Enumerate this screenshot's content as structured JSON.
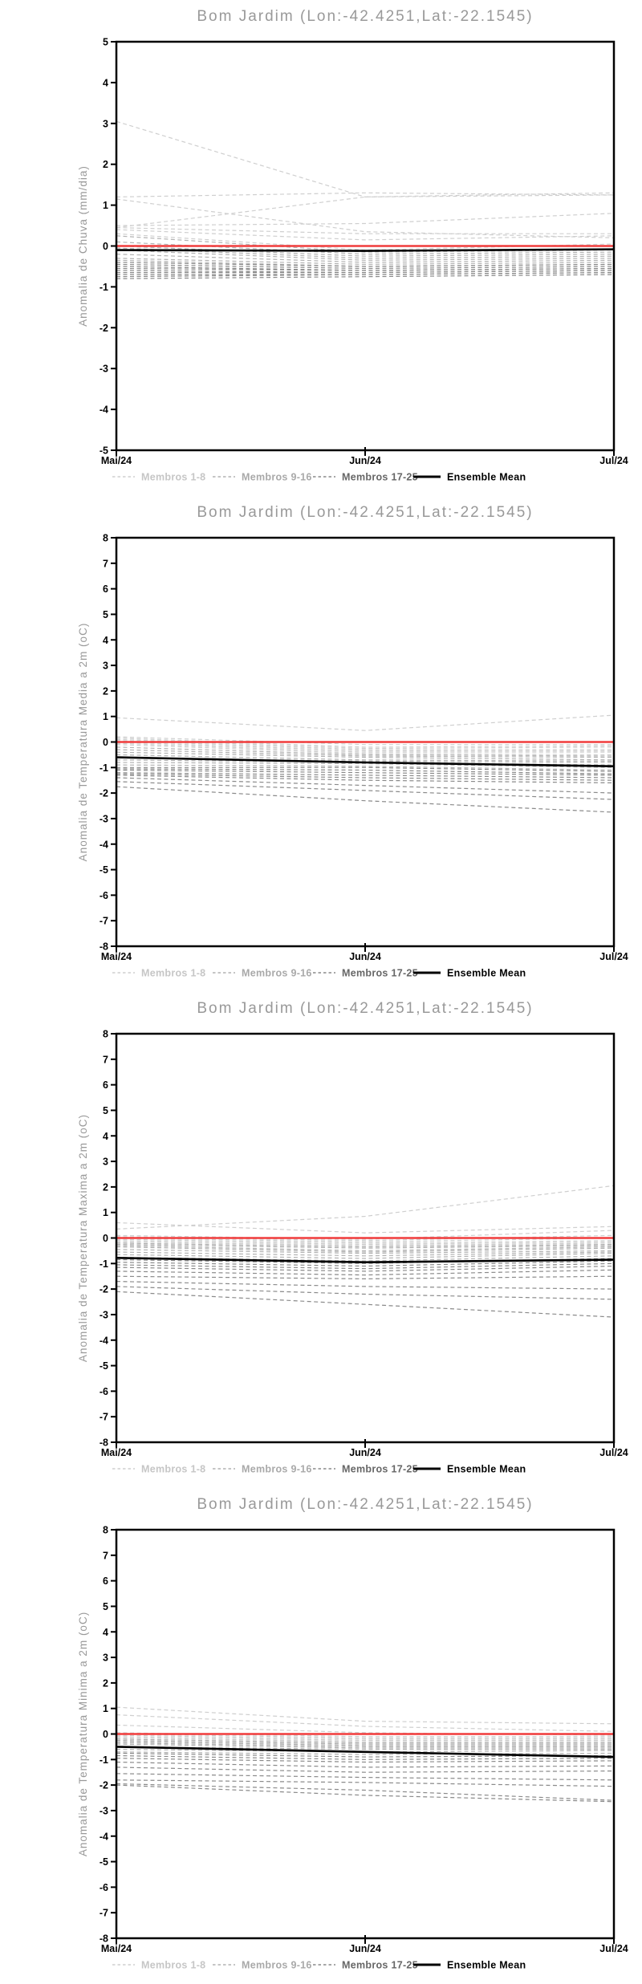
{
  "page": {
    "background": "#ffffff"
  },
  "colors": {
    "title": "#999999",
    "axis_label": "#999999",
    "tick_label": "#000000",
    "frame": "#000000",
    "zero_line": "#f13c3c",
    "mean": "#000000",
    "group_light": "#cfcfcf",
    "group_medium": "#b2b2b2",
    "group_dark": "#8a8a8a",
    "legend_text_light": "#c6c6c6",
    "legend_text_medium": "#a9a9a9",
    "legend_text_dark": "#666666",
    "legend_text_mean": "#000000"
  },
  "legend": {
    "items": [
      {
        "label": "Membros 1-8",
        "group": "light",
        "style": "dashed"
      },
      {
        "label": "Membros 9-16",
        "group": "medium",
        "style": "dashed"
      },
      {
        "label": "Membros 17-25",
        "group": "dark",
        "style": "dashed"
      },
      {
        "label": "Ensemble Mean",
        "group": "mean",
        "style": "solid"
      }
    ]
  },
  "chart_data": [
    {
      "type": "line",
      "title": "Bom Jardim (Lon:-42.4251,Lat:-22.1545)",
      "ylabel": "Anomalia de Chuva (mm/dia)",
      "xlabel": "",
      "x": [
        "Mai/24",
        "Jun/24",
        "Jul/24"
      ],
      "ylim": [
        -5,
        5
      ],
      "ytick_step": 1,
      "zero_line": 0,
      "legend_position": "bottom",
      "grid": false,
      "series": [
        {
          "name": "Membro 1",
          "group": "light",
          "values": [
            3.05,
            1.2,
            1.25
          ]
        },
        {
          "name": "Membro 2",
          "group": "light",
          "values": [
            1.2,
            1.3,
            1.25
          ]
        },
        {
          "name": "Membro 3",
          "group": "light",
          "values": [
            1.15,
            0.35,
            0.2
          ]
        },
        {
          "name": "Membro 4",
          "group": "light",
          "values": [
            0.45,
            1.2,
            1.3
          ]
        },
        {
          "name": "Membro 5",
          "group": "light",
          "values": [
            0.5,
            0.55,
            0.8
          ]
        },
        {
          "name": "Membro 6",
          "group": "light",
          "values": [
            0.45,
            0.3,
            0.3
          ]
        },
        {
          "name": "Membro 7",
          "group": "light",
          "values": [
            0.4,
            0.15,
            0.25
          ]
        },
        {
          "name": "Membro 8",
          "group": "light",
          "values": [
            0.3,
            -0.1,
            0.05
          ]
        },
        {
          "name": "Membro 9",
          "group": "medium",
          "values": [
            0.25,
            -0.15,
            -0.1
          ]
        },
        {
          "name": "Membro 10",
          "group": "medium",
          "values": [
            0.1,
            -0.2,
            -0.15
          ]
        },
        {
          "name": "Membro 11",
          "group": "medium",
          "values": [
            0.0,
            -0.25,
            -0.2
          ]
        },
        {
          "name": "Membro 12",
          "group": "medium",
          "values": [
            -0.05,
            -0.3,
            -0.25
          ]
        },
        {
          "name": "Membro 13",
          "group": "medium",
          "values": [
            -0.1,
            -0.35,
            -0.3
          ]
        },
        {
          "name": "Membro 14",
          "group": "medium",
          "values": [
            -0.2,
            -0.4,
            -0.35
          ]
        },
        {
          "name": "Membro 15",
          "group": "medium",
          "values": [
            -0.3,
            -0.45,
            -0.4
          ]
        },
        {
          "name": "Membro 16",
          "group": "medium",
          "values": [
            -0.35,
            -0.5,
            -0.45
          ]
        },
        {
          "name": "Membro 17",
          "group": "dark",
          "values": [
            -0.4,
            -0.5,
            -0.45
          ]
        },
        {
          "name": "Membro 18",
          "group": "dark",
          "values": [
            -0.45,
            -0.55,
            -0.5
          ]
        },
        {
          "name": "Membro 19",
          "group": "dark",
          "values": [
            -0.5,
            -0.6,
            -0.55
          ]
        },
        {
          "name": "Membro 20",
          "group": "dark",
          "values": [
            -0.55,
            -0.6,
            -0.55
          ]
        },
        {
          "name": "Membro 21",
          "group": "dark",
          "values": [
            -0.6,
            -0.65,
            -0.6
          ]
        },
        {
          "name": "Membro 22",
          "group": "dark",
          "values": [
            -0.65,
            -0.65,
            -0.6
          ]
        },
        {
          "name": "Membro 23",
          "group": "dark",
          "values": [
            -0.7,
            -0.7,
            -0.65
          ]
        },
        {
          "name": "Membro 24",
          "group": "dark",
          "values": [
            -0.75,
            -0.7,
            -0.65
          ]
        },
        {
          "name": "Membro 25",
          "group": "dark",
          "values": [
            -0.8,
            -0.75,
            -0.7
          ]
        }
      ],
      "ensemble_mean": {
        "name": "Ensemble Mean",
        "values": [
          -0.1,
          -0.12,
          -0.08
        ]
      }
    },
    {
      "type": "line",
      "title": "Bom Jardim (Lon:-42.4251,Lat:-22.1545)",
      "ylabel": "Anomalia de Temperatura Media a 2m (oC)",
      "xlabel": "",
      "x": [
        "Mai/24",
        "Jun/24",
        "Jul/24"
      ],
      "ylim": [
        -8,
        8
      ],
      "ytick_step": 1,
      "zero_line": 0,
      "legend_position": "bottom",
      "grid": false,
      "series": [
        {
          "name": "Membro 1",
          "group": "light",
          "values": [
            0.95,
            0.45,
            1.05
          ]
        },
        {
          "name": "Membro 2",
          "group": "light",
          "values": [
            0.2,
            -0.1,
            -0.1
          ]
        },
        {
          "name": "Membro 3",
          "group": "light",
          "values": [
            0.15,
            -0.2,
            -0.15
          ]
        },
        {
          "name": "Membro 4",
          "group": "light",
          "values": [
            0.1,
            -0.25,
            -0.2
          ]
        },
        {
          "name": "Membro 5",
          "group": "light",
          "values": [
            0.05,
            -0.3,
            -0.3
          ]
        },
        {
          "name": "Membro 6",
          "group": "light",
          "values": [
            0.0,
            -0.35,
            -0.35
          ]
        },
        {
          "name": "Membro 7",
          "group": "light",
          "values": [
            -0.05,
            -0.4,
            -0.4
          ]
        },
        {
          "name": "Membro 8",
          "group": "light",
          "values": [
            -0.1,
            -0.45,
            -0.5
          ]
        },
        {
          "name": "Membro 9",
          "group": "medium",
          "values": [
            -0.2,
            -0.5,
            -0.55
          ]
        },
        {
          "name": "Membro 10",
          "group": "medium",
          "values": [
            -0.3,
            -0.55,
            -0.6
          ]
        },
        {
          "name": "Membro 11",
          "group": "medium",
          "values": [
            -0.4,
            -0.6,
            -0.7
          ]
        },
        {
          "name": "Membro 12",
          "group": "medium",
          "values": [
            -0.5,
            -0.7,
            -0.75
          ]
        },
        {
          "name": "Membro 13",
          "group": "medium",
          "values": [
            -0.6,
            -0.75,
            -0.8
          ]
        },
        {
          "name": "Membro 14",
          "group": "medium",
          "values": [
            -0.7,
            -0.8,
            -0.9
          ]
        },
        {
          "name": "Membro 15",
          "group": "medium",
          "values": [
            -0.8,
            -0.85,
            -1.0
          ]
        },
        {
          "name": "Membro 16",
          "group": "medium",
          "values": [
            -0.9,
            -0.95,
            -1.1
          ]
        },
        {
          "name": "Membro 17",
          "group": "dark",
          "values": [
            -1.0,
            -1.0,
            -1.15
          ]
        },
        {
          "name": "Membro 18",
          "group": "dark",
          "values": [
            -1.05,
            -1.1,
            -1.25
          ]
        },
        {
          "name": "Membro 19",
          "group": "dark",
          "values": [
            -1.1,
            -1.2,
            -1.3
          ]
        },
        {
          "name": "Membro 20",
          "group": "dark",
          "values": [
            -1.2,
            -1.3,
            -1.4
          ]
        },
        {
          "name": "Membro 21",
          "group": "dark",
          "values": [
            -1.25,
            -1.4,
            -1.5
          ]
        },
        {
          "name": "Membro 22",
          "group": "dark",
          "values": [
            -1.3,
            -1.5,
            -1.6
          ]
        },
        {
          "name": "Membro 23",
          "group": "dark",
          "values": [
            -1.4,
            -1.7,
            -2.0
          ]
        },
        {
          "name": "Membro 24",
          "group": "dark",
          "values": [
            -1.55,
            -1.9,
            -2.25
          ]
        },
        {
          "name": "Membro 25",
          "group": "dark",
          "values": [
            -1.75,
            -2.3,
            -2.75
          ]
        }
      ],
      "ensemble_mean": {
        "name": "Ensemble Mean",
        "values": [
          -0.6,
          -0.8,
          -0.95
        ]
      }
    },
    {
      "type": "line",
      "title": "Bom Jardim (Lon:-42.4251,Lat:-22.1545)",
      "ylabel": "Anomalia de Temperatura Maxima a 2m (oC)",
      "xlabel": "",
      "x": [
        "Mai/24",
        "Jun/24",
        "Jul/24"
      ],
      "ylim": [
        -8,
        8
      ],
      "ytick_step": 1,
      "zero_line": 0,
      "legend_position": "bottom",
      "grid": false,
      "series": [
        {
          "name": "Membro 1",
          "group": "light",
          "values": [
            0.35,
            0.85,
            2.05
          ]
        },
        {
          "name": "Membro 2",
          "group": "light",
          "values": [
            0.6,
            0.2,
            0.45
          ]
        },
        {
          "name": "Membro 3",
          "group": "light",
          "values": [
            0.1,
            -0.05,
            0.3
          ]
        },
        {
          "name": "Membro 4",
          "group": "light",
          "values": [
            0.05,
            -0.1,
            0.1
          ]
        },
        {
          "name": "Membro 5",
          "group": "light",
          "values": [
            0.0,
            -0.15,
            0.0
          ]
        },
        {
          "name": "Membro 6",
          "group": "light",
          "values": [
            -0.05,
            -0.2,
            -0.1
          ]
        },
        {
          "name": "Membro 7",
          "group": "light",
          "values": [
            -0.1,
            -0.25,
            -0.15
          ]
        },
        {
          "name": "Membro 8",
          "group": "light",
          "values": [
            -0.15,
            -0.3,
            -0.2
          ]
        },
        {
          "name": "Membro 9",
          "group": "medium",
          "values": [
            -0.2,
            -0.35,
            -0.25
          ]
        },
        {
          "name": "Membro 10",
          "group": "medium",
          "values": [
            -0.25,
            -0.4,
            -0.3
          ]
        },
        {
          "name": "Membro 11",
          "group": "medium",
          "values": [
            -0.3,
            -0.5,
            -0.35
          ]
        },
        {
          "name": "Membro 12",
          "group": "medium",
          "values": [
            -0.35,
            -0.55,
            -0.4
          ]
        },
        {
          "name": "Membro 13",
          "group": "medium",
          "values": [
            -0.45,
            -0.6,
            -0.5
          ]
        },
        {
          "name": "Membro 14",
          "group": "medium",
          "values": [
            -0.55,
            -0.7,
            -0.55
          ]
        },
        {
          "name": "Membro 15",
          "group": "medium",
          "values": [
            -0.65,
            -0.8,
            -0.6
          ]
        },
        {
          "name": "Membro 16",
          "group": "medium",
          "values": [
            -0.75,
            -0.9,
            -0.7
          ]
        },
        {
          "name": "Membro 17",
          "group": "dark",
          "values": [
            -0.85,
            -1.0,
            -0.8
          ]
        },
        {
          "name": "Membro 18",
          "group": "dark",
          "values": [
            -0.95,
            -1.1,
            -0.9
          ]
        },
        {
          "name": "Membro 19",
          "group": "dark",
          "values": [
            -1.05,
            -1.2,
            -1.0
          ]
        },
        {
          "name": "Membro 20",
          "group": "dark",
          "values": [
            -1.15,
            -1.3,
            -1.1
          ]
        },
        {
          "name": "Membro 21",
          "group": "dark",
          "values": [
            -1.3,
            -1.45,
            -1.25
          ]
        },
        {
          "name": "Membro 22",
          "group": "dark",
          "values": [
            -1.5,
            -1.6,
            -1.5
          ]
        },
        {
          "name": "Membro 23",
          "group": "dark",
          "values": [
            -1.7,
            -1.9,
            -2.0
          ]
        },
        {
          "name": "Membro 24",
          "group": "dark",
          "values": [
            -1.9,
            -2.2,
            -2.4
          ]
        },
        {
          "name": "Membro 25",
          "group": "dark",
          "values": [
            -2.1,
            -2.6,
            -3.1
          ]
        }
      ],
      "ensemble_mean": {
        "name": "Ensemble Mean",
        "values": [
          -0.78,
          -0.95,
          -0.85
        ]
      }
    },
    {
      "type": "line",
      "title": "Bom Jardim (Lon:-42.4251,Lat:-22.1545)",
      "ylabel": "Anomalia de Temperatura Minima a 2m (oC)",
      "xlabel": "",
      "x": [
        "Mai/24",
        "Jun/24",
        "Jul/24"
      ],
      "ylim": [
        -8,
        8
      ],
      "ytick_step": 1,
      "zero_line": 0,
      "legend_position": "bottom",
      "grid": false,
      "series": [
        {
          "name": "Membro 1",
          "group": "light",
          "values": [
            1.05,
            0.5,
            0.4
          ]
        },
        {
          "name": "Membro 2",
          "group": "light",
          "values": [
            0.75,
            0.3,
            0.1
          ]
        },
        {
          "name": "Membro 3",
          "group": "light",
          "values": [
            0.35,
            0.05,
            -0.05
          ]
        },
        {
          "name": "Membro 4",
          "group": "light",
          "values": [
            0.05,
            -0.1,
            -0.1
          ]
        },
        {
          "name": "Membro 5",
          "group": "light",
          "values": [
            0.0,
            -0.15,
            -0.15
          ]
        },
        {
          "name": "Membro 6",
          "group": "light",
          "values": [
            -0.05,
            -0.2,
            -0.2
          ]
        },
        {
          "name": "Membro 7",
          "group": "light",
          "values": [
            -0.1,
            -0.25,
            -0.25
          ]
        },
        {
          "name": "Membro 8",
          "group": "light",
          "values": [
            -0.15,
            -0.3,
            -0.3
          ]
        },
        {
          "name": "Membro 9",
          "group": "medium",
          "values": [
            -0.2,
            -0.35,
            -0.35
          ]
        },
        {
          "name": "Membro 10",
          "group": "medium",
          "values": [
            -0.25,
            -0.4,
            -0.4
          ]
        },
        {
          "name": "Membro 11",
          "group": "medium",
          "values": [
            -0.3,
            -0.45,
            -0.45
          ]
        },
        {
          "name": "Membro 12",
          "group": "medium",
          "values": [
            -0.35,
            -0.5,
            -0.5
          ]
        },
        {
          "name": "Membro 13",
          "group": "medium",
          "values": [
            -0.4,
            -0.55,
            -0.55
          ]
        },
        {
          "name": "Membro 14",
          "group": "medium",
          "values": [
            -0.5,
            -0.6,
            -0.6
          ]
        },
        {
          "name": "Membro 15",
          "group": "medium",
          "values": [
            -0.6,
            -0.7,
            -0.65
          ]
        },
        {
          "name": "Membro 16",
          "group": "medium",
          "values": [
            -0.7,
            -0.8,
            -0.75
          ]
        },
        {
          "name": "Membro 17",
          "group": "dark",
          "values": [
            -0.75,
            -0.9,
            -0.85
          ]
        },
        {
          "name": "Membro 18",
          "group": "dark",
          "values": [
            -0.85,
            -1.0,
            -0.95
          ]
        },
        {
          "name": "Membro 19",
          "group": "dark",
          "values": [
            -0.95,
            -1.1,
            -1.05
          ]
        },
        {
          "name": "Membro 20",
          "group": "dark",
          "values": [
            -1.1,
            -1.3,
            -1.25
          ]
        },
        {
          "name": "Membro 21",
          "group": "dark",
          "values": [
            -1.3,
            -1.5,
            -1.45
          ]
        },
        {
          "name": "Membro 22",
          "group": "dark",
          "values": [
            -1.55,
            -1.7,
            -1.8
          ]
        },
        {
          "name": "Membro 23",
          "group": "dark",
          "values": [
            -1.8,
            -1.9,
            -2.05
          ]
        },
        {
          "name": "Membro 24",
          "group": "dark",
          "values": [
            -1.95,
            -2.2,
            -2.6
          ]
        },
        {
          "name": "Membro 25",
          "group": "dark",
          "values": [
            -2.0,
            -2.4,
            -2.65
          ]
        }
      ],
      "ensemble_mean": {
        "name": "Ensemble Mean",
        "values": [
          -0.5,
          -0.7,
          -0.9
        ]
      }
    }
  ]
}
